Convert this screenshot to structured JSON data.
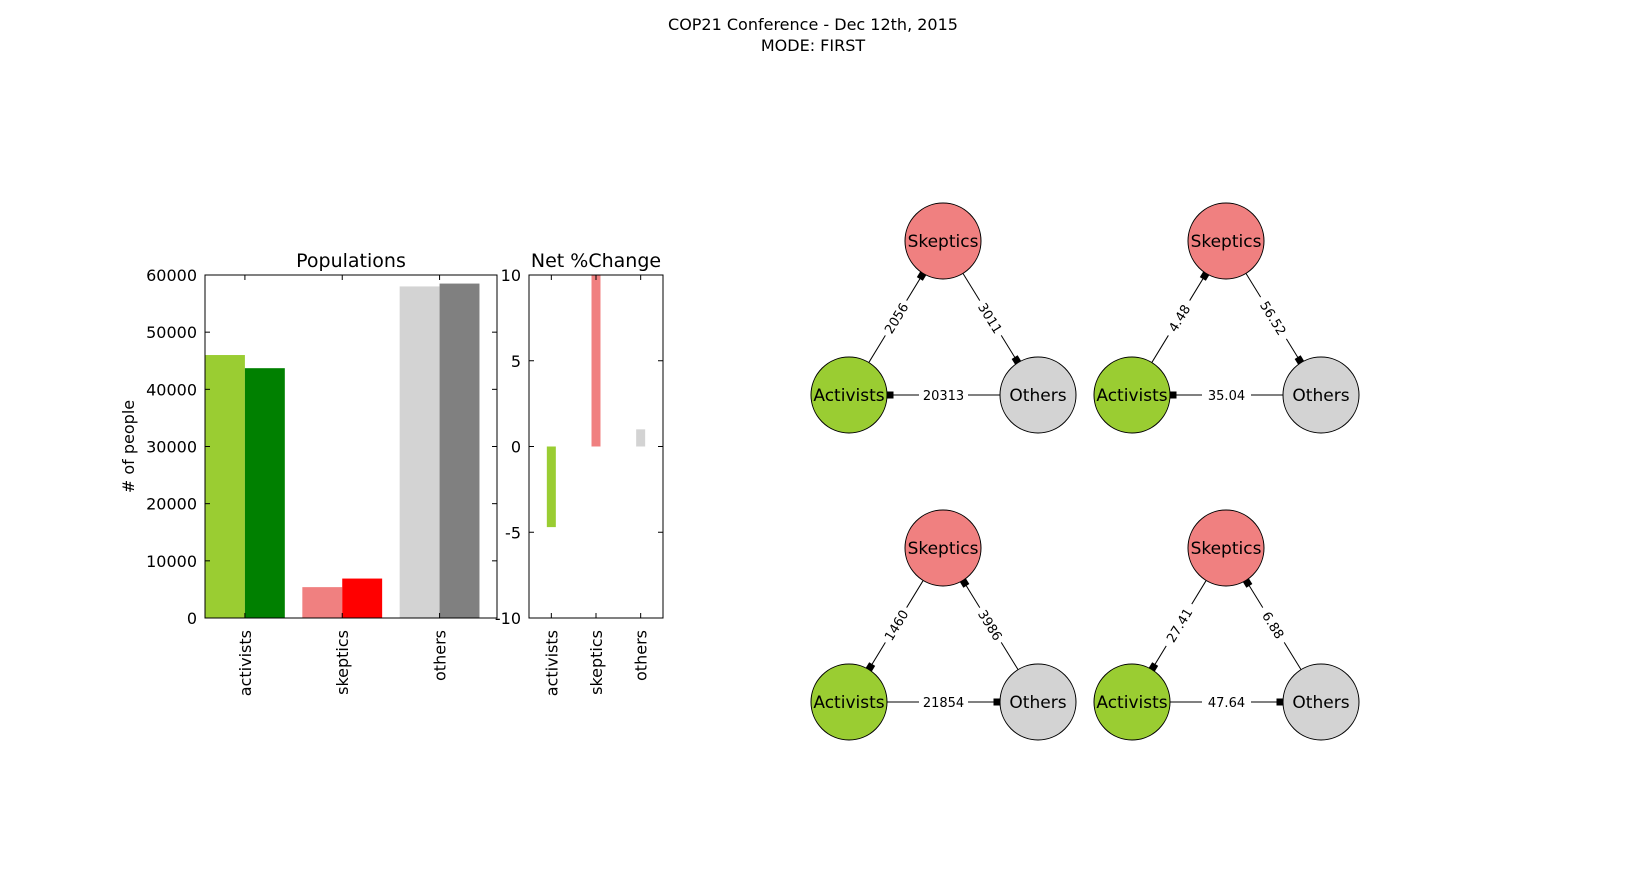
{
  "figure": {
    "title": "COP21 Conference - Dec 12th, 2015",
    "subtitle": "MODE: FIRST"
  },
  "chart_data": [
    {
      "type": "bar",
      "title": "Populations",
      "ylabel": "# of people",
      "xlabel": "",
      "categories": [
        "activists",
        "skeptics",
        "others"
      ],
      "ylim": [
        0,
        60000
      ],
      "yticks": [
        "0",
        "10000",
        "20000",
        "30000",
        "40000",
        "50000",
        "60000"
      ],
      "series": [
        {
          "values": [
            46000,
            5400,
            58000
          ],
          "colors": [
            "#9acd32",
            "#f08080",
            "#d3d3d3"
          ]
        },
        {
          "values": [
            43700,
            6900,
            58500
          ],
          "colors": [
            "#008000",
            "#ff0000",
            "#808080"
          ]
        }
      ],
      "grid": false
    },
    {
      "type": "bar",
      "title": "Net %Change",
      "categories": [
        "activists",
        "skeptics",
        "others"
      ],
      "values": [
        -4.7,
        10.0,
        1.0
      ],
      "colors": [
        "#9acd32",
        "#f08080",
        "#d3d3d3"
      ],
      "ylim": [
        -10,
        10
      ],
      "yticks": [
        "-10",
        "-5",
        "0",
        "5",
        "10"
      ],
      "grid": false
    }
  ],
  "networks": {
    "node_labels": {
      "skeptics": "Skeptics",
      "activists": "Activists",
      "others": "Others"
    },
    "node_colors": {
      "skeptics": "#f08080",
      "activists": "#9acd32",
      "others": "#d3d3d3"
    },
    "graphs": [
      {
        "edges": [
          {
            "from": "activists",
            "to": "skeptics",
            "label": "2056"
          },
          {
            "from": "skeptics",
            "to": "others",
            "label": "3011"
          },
          {
            "from": "others",
            "to": "activists",
            "label": "20313"
          }
        ]
      },
      {
        "edges": [
          {
            "from": "activists",
            "to": "skeptics",
            "label": "4.48"
          },
          {
            "from": "skeptics",
            "to": "others",
            "label": "56.52"
          },
          {
            "from": "others",
            "to": "activists",
            "label": "35.04"
          }
        ]
      },
      {
        "edges": [
          {
            "from": "skeptics",
            "to": "activists",
            "label": "1460"
          },
          {
            "from": "others",
            "to": "skeptics",
            "label": "3986"
          },
          {
            "from": "activists",
            "to": "others",
            "label": "21854"
          }
        ]
      },
      {
        "edges": [
          {
            "from": "skeptics",
            "to": "activists",
            "label": "27.41"
          },
          {
            "from": "others",
            "to": "skeptics",
            "label": "6.88"
          },
          {
            "from": "activists",
            "to": "others",
            "label": "47.64"
          }
        ]
      }
    ]
  }
}
